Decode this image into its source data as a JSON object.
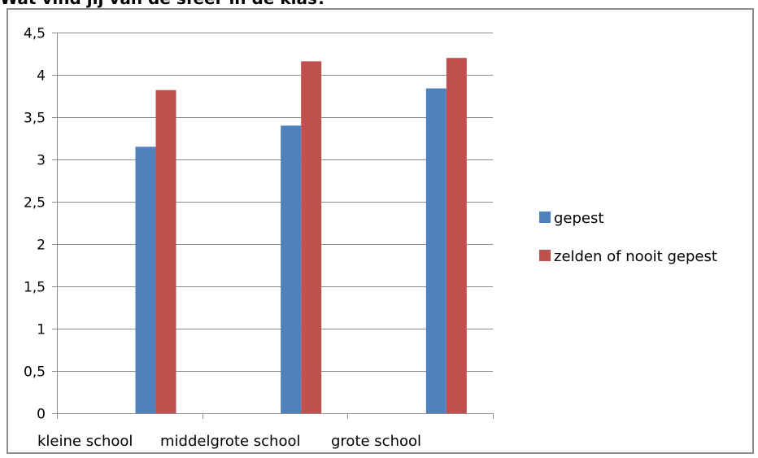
{
  "title": "Wat vind jij van de sfeer in de klas?",
  "chart_data": {
    "type": "bar",
    "title": "Wat vind jij van de sfeer in de klas?",
    "categories": [
      "kleine school",
      "middelgrote school",
      "grote school"
    ],
    "series": [
      {
        "name": "gepest",
        "color": "#4F81BD",
        "values": [
          3.15,
          3.4,
          3.84
        ]
      },
      {
        "name": "zelden of nooit gepest",
        "color": "#C0504D",
        "values": [
          3.82,
          4.16,
          4.2
        ]
      }
    ],
    "yticks": [
      "0",
      "0,5",
      "1",
      "1,5",
      "2",
      "2,5",
      "3",
      "3,5",
      "4",
      "4,5"
    ],
    "ylim": [
      0,
      4.5
    ],
    "grid": true,
    "legend": "right"
  }
}
